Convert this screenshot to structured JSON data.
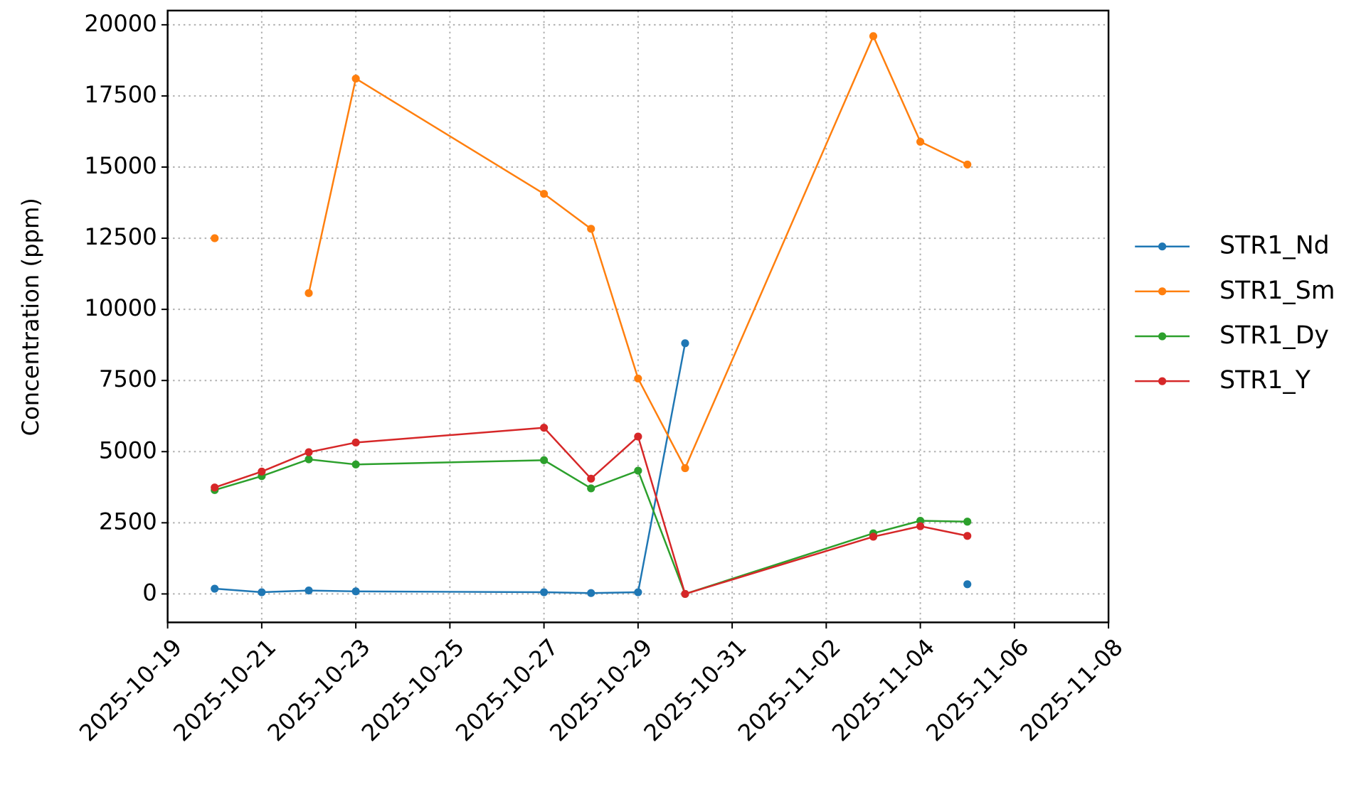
{
  "chart_data": {
    "type": "line",
    "y_label": "Concentration (ppm)",
    "x": [
      "2025-10-20",
      "2025-10-21",
      "2025-10-22",
      "2025-10-23",
      "2025-10-27",
      "2025-10-28",
      "2025-10-29",
      "2025-10-30",
      "2025-11-03",
      "2025-11-04",
      "2025-11-05"
    ],
    "series": [
      {
        "name": "STR1_Nd",
        "color": "#1f77b4",
        "values": [
          185,
          60,
          120,
          90,
          60,
          30,
          60,
          8810,
          null,
          null,
          340
        ]
      },
      {
        "name": "STR1_Sm",
        "color": "#ff7f0e",
        "values": [
          12500,
          null,
          10570,
          18110,
          14060,
          12830,
          7570,
          4420,
          19600,
          15890,
          15090
        ]
      },
      {
        "name": "STR1_Dy",
        "color": "#2ca02c",
        "values": [
          3650,
          4140,
          4730,
          4550,
          4700,
          3710,
          4330,
          0,
          2130,
          2570,
          2540
        ]
      },
      {
        "name": "STR1_Y",
        "color": "#d62728",
        "values": [
          3740,
          4300,
          4980,
          5320,
          5840,
          4050,
          5530,
          0,
          2010,
          2380,
          2040
        ]
      }
    ],
    "xlim": [
      "2025-10-19",
      "2025-11-08"
    ],
    "xticks": [
      "2025-10-19",
      "2025-10-21",
      "2025-10-23",
      "2025-10-25",
      "2025-10-27",
      "2025-10-29",
      "2025-10-31",
      "2025-11-02",
      "2025-11-04",
      "2025-11-06",
      "2025-11-08"
    ],
    "ylim": [
      -1000,
      20500
    ],
    "yticks": [
      0,
      2500,
      5000,
      7500,
      10000,
      12500,
      15000,
      17500,
      20000
    ],
    "grid": true,
    "legend": "right"
  }
}
